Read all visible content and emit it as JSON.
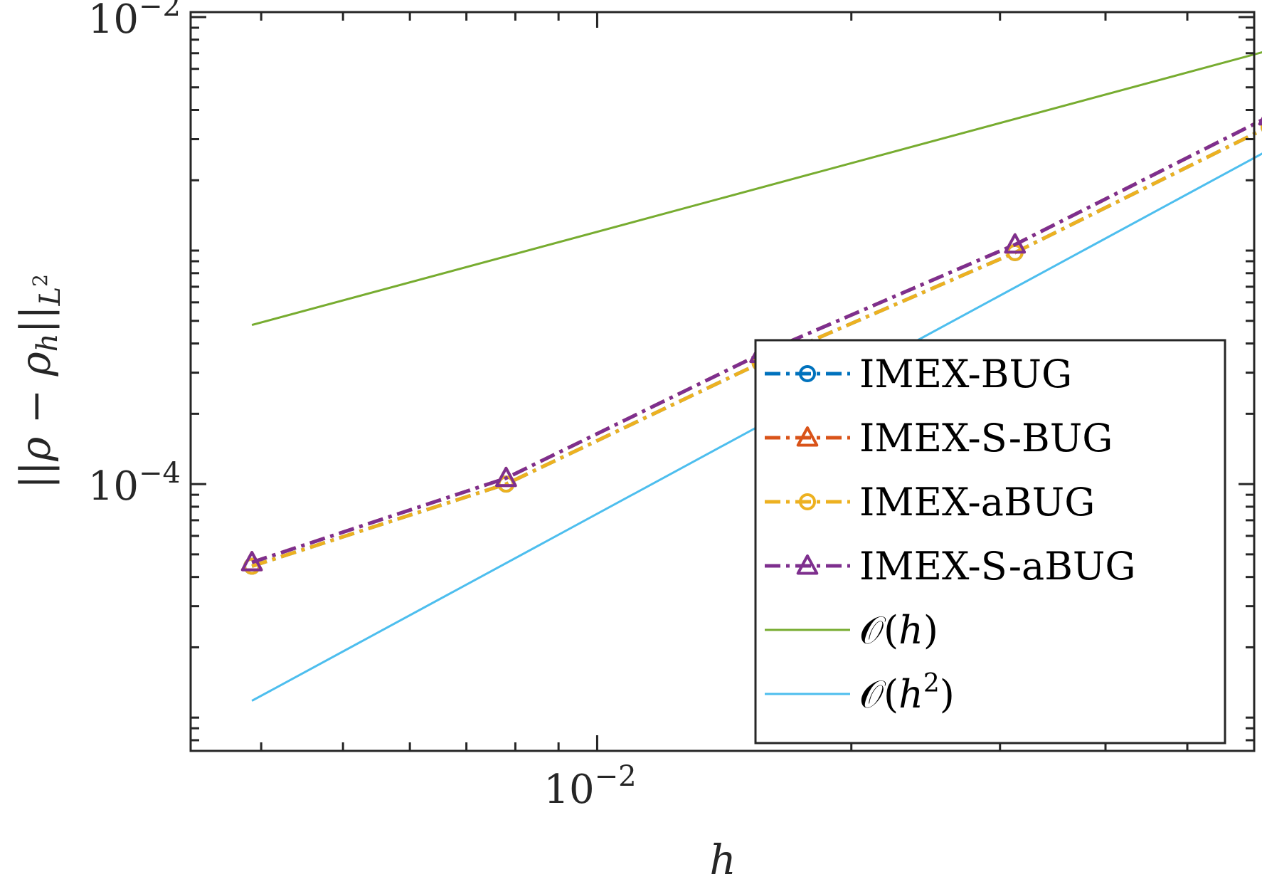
{
  "chart_data": {
    "type": "line",
    "xscale": "log",
    "yscale": "log",
    "xlabel": "h",
    "ylabel": "||ρ − ρ_h||_{L²}",
    "xlim": [
      0.0033,
      0.06
    ],
    "ylim": [
      7.2e-06,
      0.0105
    ],
    "x_ticks": [
      {
        "value": 0.01,
        "base": "10",
        "exp": "−2"
      }
    ],
    "y_ticks": [
      {
        "value": 0.0001,
        "base": "10",
        "exp": "−4"
      },
      {
        "value": 0.01,
        "base": "10",
        "exp": "−2"
      }
    ],
    "legend_location": "bottom-right",
    "series": [
      {
        "name": "IMEX-BUG",
        "color": "#0072BD",
        "marker": "circle",
        "linestyle": "dashdot",
        "x": [
          0.0039,
          0.0078,
          0.0156,
          0.03125,
          0.0625
        ],
        "y": [
          4.45e-05,
          0.0001,
          0.00033,
          0.00098,
          0.0034
        ]
      },
      {
        "name": "IMEX-S-BUG",
        "color": "#D95319",
        "marker": "triangle",
        "linestyle": "dashdot",
        "x": [
          0.0039,
          0.0078,
          0.0156,
          0.03125,
          0.0625
        ],
        "y": [
          4.62e-05,
          0.000106,
          0.00036,
          0.00106,
          0.00375
        ]
      },
      {
        "name": "IMEX-aBUG",
        "color": "#EDB120",
        "marker": "circle",
        "linestyle": "dashdot",
        "x": [
          0.0039,
          0.0078,
          0.0156,
          0.03125,
          0.0625
        ],
        "y": [
          4.45e-05,
          0.0001,
          0.00033,
          0.00098,
          0.0034
        ]
      },
      {
        "name": "IMEX-S-aBUG",
        "color": "#7E2F8E",
        "marker": "triangle",
        "linestyle": "dashdot",
        "x": [
          0.0039,
          0.0078,
          0.0156,
          0.03125,
          0.0625
        ],
        "y": [
          4.62e-05,
          0.000106,
          0.00036,
          0.00106,
          0.00375
        ]
      },
      {
        "name": "O(h)",
        "color": "#77AC30",
        "marker": "none",
        "linestyle": "solid",
        "x": [
          0.0039,
          0.0625
        ],
        "y": [
          0.00048,
          0.0072
        ]
      },
      {
        "name": "O(h²)",
        "color": "#4DBEEE",
        "marker": "none",
        "linestyle": "solid",
        "x": [
          0.0039,
          0.0625
        ],
        "y": [
          1.18e-05,
          0.0027
        ]
      }
    ]
  }
}
